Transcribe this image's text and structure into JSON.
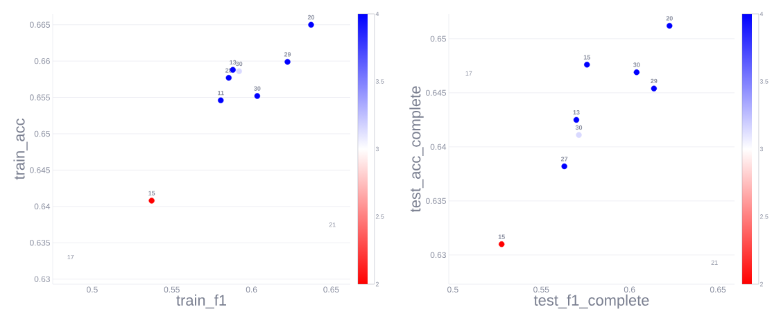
{
  "chart_data": [
    {
      "type": "scatter",
      "xlabel": "train_f1",
      "ylabel": "train_acc",
      "x": [
        0.6374,
        0.6226,
        0.5883,
        0.5922,
        0.5857,
        0.5807,
        0.6036,
        0.5373
      ],
      "values": [
        0.665,
        0.6599,
        0.6588,
        0.6586,
        0.6577,
        0.6546,
        0.6552,
        0.6408
      ],
      "cvalues": [
        4,
        4,
        4,
        3.15,
        4,
        4,
        4,
        2
      ],
      "annotations": [
        {
          "text": "20",
          "x": 0.6374,
          "y": 0.665
        },
        {
          "text": "29",
          "x": 0.6226,
          "y": 0.6599
        },
        {
          "text": "13",
          "x": 0.5883,
          "y": 0.6588
        },
        {
          "text": "30",
          "x": 0.5922,
          "y": 0.6586
        },
        {
          "text": "28",
          "x": 0.5857,
          "y": 0.6577
        },
        {
          "text": "11",
          "x": 0.5807,
          "y": 0.6546
        },
        {
          "text": "30",
          "x": 0.6036,
          "y": 0.6552
        },
        {
          "text": "15",
          "x": 0.5373,
          "y": 0.6408
        },
        "21",
        "17"
      ],
      "xlim": [
        0.4752,
        0.662
      ],
      "ylim": [
        0.6293,
        0.6665
      ],
      "xticks": [
        0.5,
        0.55,
        0.6,
        0.65
      ],
      "yticks": [
        0.63,
        0.635,
        0.64,
        0.645,
        0.65,
        0.655,
        0.66,
        0.665
      ],
      "clim": [
        2,
        4
      ],
      "cticks": [
        2,
        2.5,
        3,
        3.5,
        4
      ],
      "grid": "y",
      "marker": "circle"
    },
    {
      "type": "scatter",
      "xlabel": "test_f1_complete",
      "ylabel": "test_acc_complete",
      "x": [
        0.6226,
        0.5759,
        0.604,
        0.6138,
        0.5699,
        0.5713,
        0.5631,
        0.5276
      ],
      "values": [
        0.6512,
        0.6476,
        0.6469,
        0.6454,
        0.6425,
        0.6411,
        0.6382,
        0.631
      ],
      "cvalues": [
        4,
        4,
        4,
        4,
        4,
        3.15,
        4,
        2
      ],
      "annotations": [
        {
          "text": "20",
          "x": 0.6226,
          "y": 0.6512
        },
        {
          "text": "15",
          "x": 0.5759,
          "y": 0.6476
        },
        {
          "text": "30",
          "x": 0.604,
          "y": 0.6469
        },
        {
          "text": "29",
          "x": 0.6138,
          "y": 0.6454
        },
        {
          "text": "13",
          "x": 0.5699,
          "y": 0.6425
        },
        {
          "text": "30",
          "x": 0.5713,
          "y": 0.6411
        },
        {
          "text": "27",
          "x": 0.5631,
          "y": 0.6382
        },
        {
          "text": "15",
          "x": 0.5276,
          "y": 0.631
        },
        "17",
        "21"
      ],
      "xlim": [
        0.4977,
        0.6594
      ],
      "ylim": [
        0.6273,
        0.6523
      ],
      "xticks": [
        0.5,
        0.55,
        0.6,
        0.65
      ],
      "yticks": [
        0.63,
        0.635,
        0.64,
        0.645,
        0.65
      ],
      "clim": [
        2,
        4
      ],
      "cticks": [
        2,
        2.5,
        3,
        3.5,
        4
      ],
      "grid": "y",
      "marker": "circle"
    }
  ]
}
